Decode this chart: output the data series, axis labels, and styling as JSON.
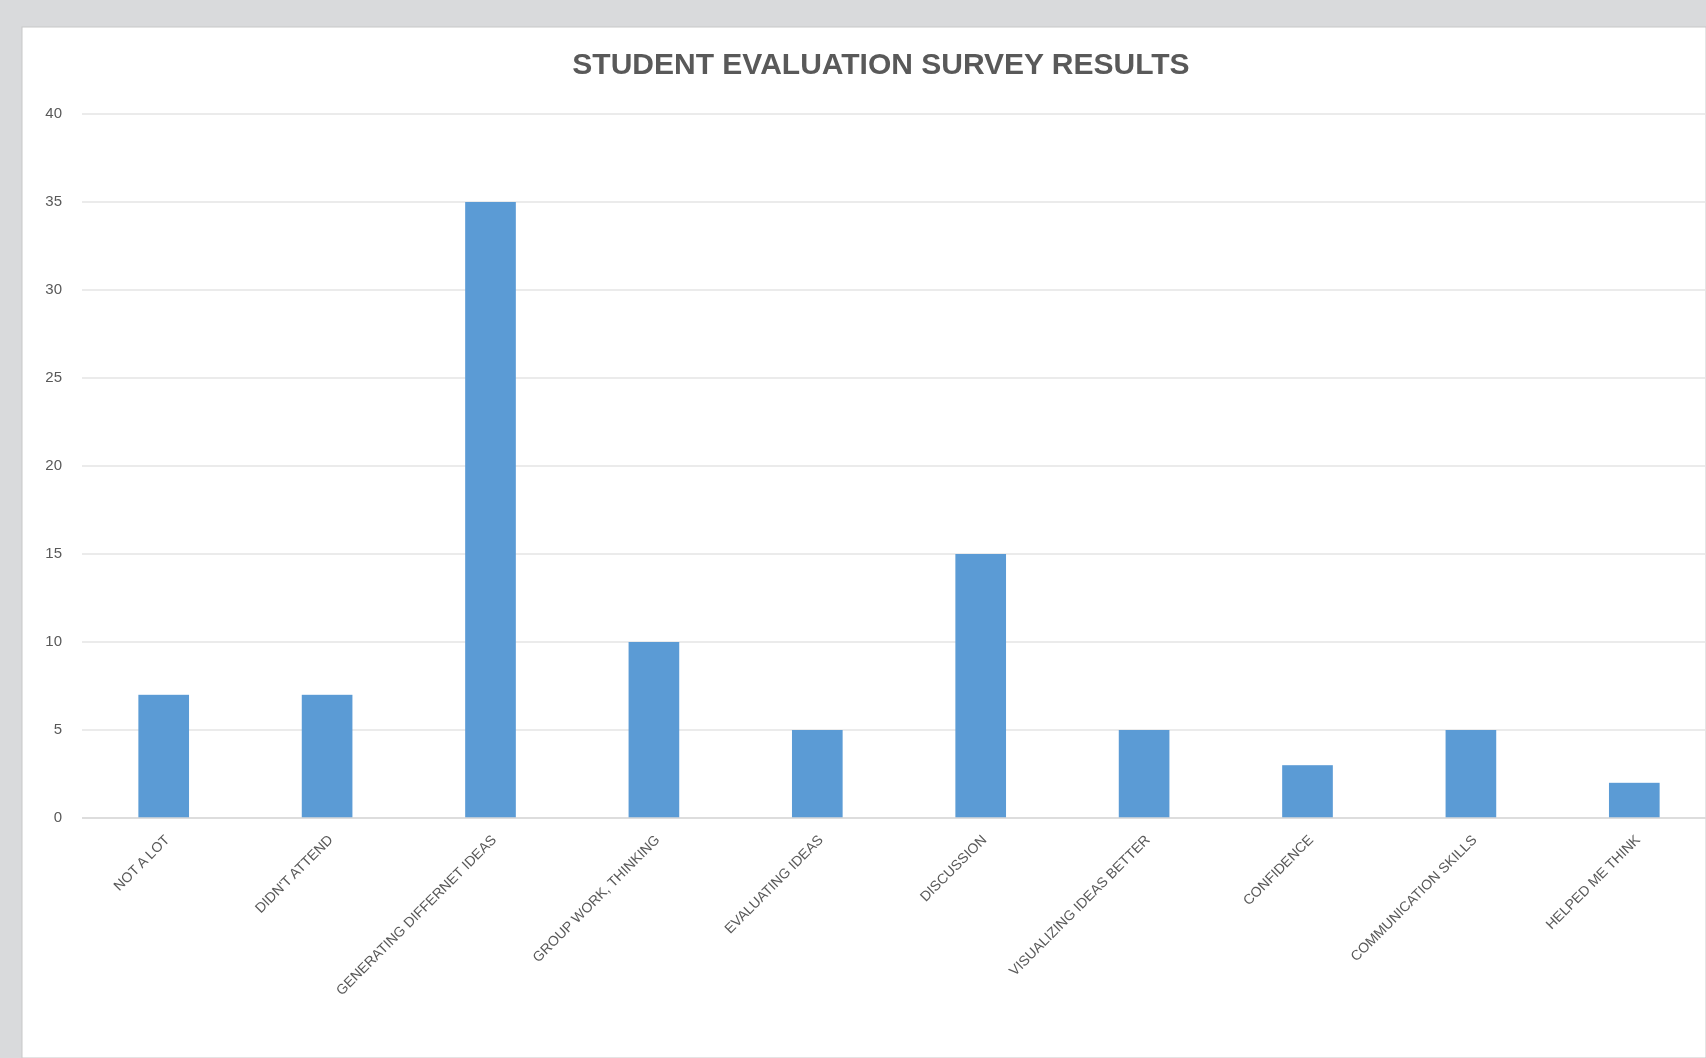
{
  "chart_data": {
    "type": "bar",
    "title": "STUDENT EVALUATION SURVEY RESULTS",
    "categories": [
      "NOT A LOT",
      "DIDN'T ATTEND",
      "GENERATING DIFFERNET IDEAS",
      "GROUP WORK, THINKING",
      "EVALUATING IDEAS",
      "DISCUSSION",
      "VISUALIZING IDEAS BETTER",
      "CONFIDENCE",
      "COMMUNICATION SKILLS",
      "HELPED ME THINK"
    ],
    "values": [
      7,
      7,
      35,
      10,
      5,
      15,
      5,
      3,
      5,
      2
    ],
    "color": "#5b9bd5",
    "ylim": [
      0,
      40
    ],
    "yticks": [
      0,
      5,
      10,
      15,
      20,
      25,
      30,
      35,
      40
    ],
    "grid": "y"
  }
}
